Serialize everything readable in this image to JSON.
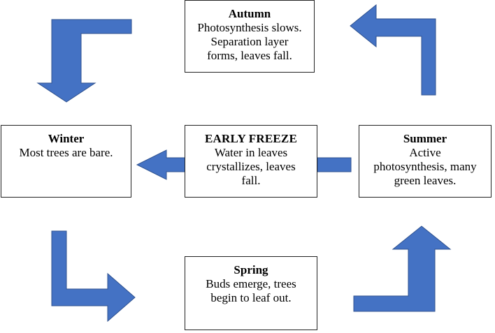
{
  "diagram": {
    "accent_color": "#4472C4",
    "arrow_border_color": "#2F528F",
    "boxes": {
      "autumn": {
        "title": "Autumn",
        "lines": [
          "Photosynthesis slows.",
          "Separation layer",
          "forms, leaves fall."
        ]
      },
      "winter": {
        "title": "Winter",
        "lines": [
          "Most trees are bare."
        ]
      },
      "freeze": {
        "title": "EARLY FREEZE",
        "lines": [
          "Water in leaves",
          "crystallizes, leaves",
          "fall."
        ]
      },
      "summer": {
        "title": "Summer",
        "lines": [
          "Active",
          "photosynthesis, many",
          "green leaves."
        ]
      },
      "spring": {
        "title": "Spring",
        "lines": [
          "Buds emerge, trees",
          "begin to leaf out."
        ]
      }
    },
    "arrows": [
      {
        "name": "arrow-autumn-to-winter",
        "shape": "bent",
        "direction": "down"
      },
      {
        "name": "arrow-winter-to-spring",
        "shape": "bent",
        "direction": "right"
      },
      {
        "name": "arrow-spring-to-summer",
        "shape": "bent",
        "direction": "up"
      },
      {
        "name": "arrow-summer-to-autumn",
        "shape": "bent",
        "direction": "left"
      },
      {
        "name": "arrow-freeze-to-winter",
        "shape": "straight",
        "direction": "left"
      },
      {
        "name": "arrow-summer-to-freeze",
        "shape": "bar",
        "direction": "none"
      }
    ]
  }
}
